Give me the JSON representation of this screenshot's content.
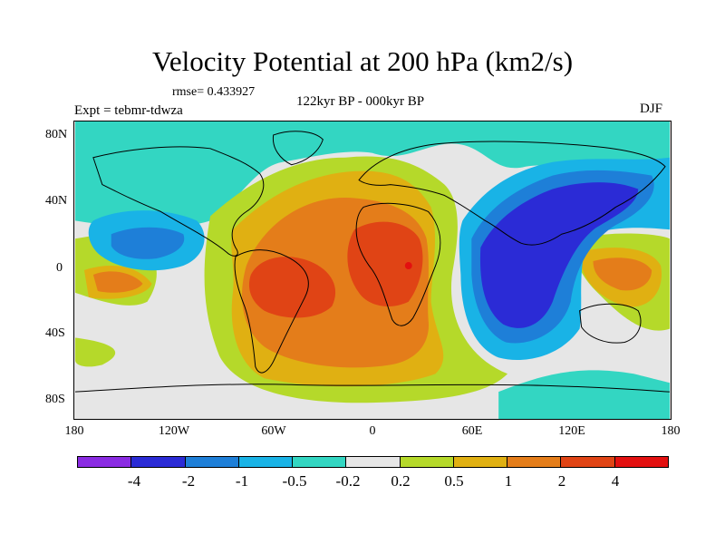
{
  "title": "Velocity Potential at 200 hPa (km2/s)",
  "rmse": "rmse= 0.433927",
  "experiment": "Expt = tebmr-tdwza",
  "period": "122kyr BP - 000kyr BP",
  "season": "DJF",
  "lat_labels": [
    "80N",
    "40N",
    "0",
    "40S",
    "80S"
  ],
  "lon_labels": [
    "180",
    "120W",
    "60W",
    "0",
    "60E",
    "120E",
    "180"
  ],
  "colorbar": {
    "labels": [
      "-4",
      "-2",
      "-1",
      "-0.5",
      "-0.2",
      "0.2",
      "0.5",
      "1",
      "2",
      "4"
    ],
    "colors": [
      "#8a2be2",
      "#2b2bd6",
      "#1e7fd8",
      "#19b3e6",
      "#33d6c2",
      "#e6e6e6",
      "#b5d92a",
      "#e0b012",
      "#e47d1a",
      "#e04415",
      "#e31010"
    ]
  },
  "colors": {
    "continent_outline": "#000000",
    "marker": "#e31010"
  }
}
